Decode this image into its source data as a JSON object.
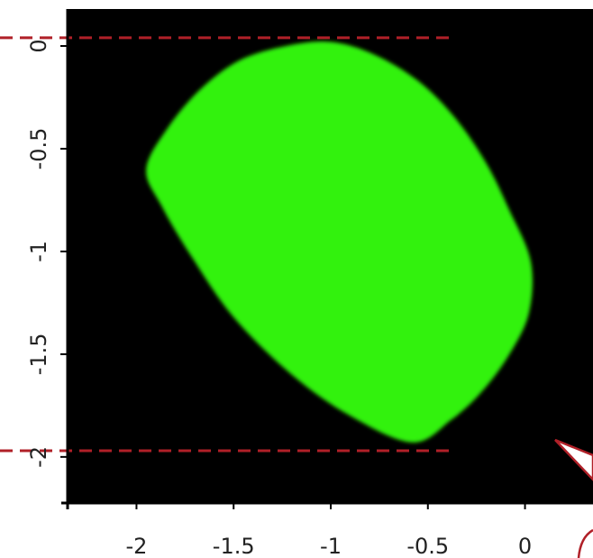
{
  "colors": {
    "background": "#000000",
    "fill": "#33f20a",
    "reference_line": "#b02028",
    "axis": "#000000",
    "callout_stroke": "#b02028",
    "callout_fill": "#ffffff"
  },
  "chart_data": {
    "type": "area",
    "title": "",
    "xlabel": "",
    "ylabel": "",
    "xlim": [
      -2.35,
      0.35
    ],
    "ylim": [
      -2.22,
      0.18
    ],
    "grid": false,
    "x_ticks": [
      -2,
      -1.5,
      -1,
      -0.5,
      0
    ],
    "y_ticks": [
      0,
      -0.5,
      -1,
      -1.5,
      -2
    ],
    "x_tick_labels": [
      "-2",
      "-1.5",
      "-1",
      "-0.5",
      "0"
    ],
    "y_tick_labels": [
      "0",
      "-0.5",
      "-1",
      "-1.5",
      "-2"
    ],
    "region_boundary": [
      [
        -1.95,
        -0.6
      ],
      [
        -1.84,
        -0.4
      ],
      [
        -1.67,
        -0.21
      ],
      [
        -1.47,
        -0.07
      ],
      [
        -1.23,
        0.0
      ],
      [
        -1.0,
        0.02
      ],
      [
        -0.78,
        -0.04
      ],
      [
        -0.55,
        -0.17
      ],
      [
        -0.36,
        -0.35
      ],
      [
        -0.2,
        -0.57
      ],
      [
        -0.08,
        -0.8
      ],
      [
        0.03,
        -1.05
      ],
      [
        0.02,
        -1.3
      ],
      [
        -0.08,
        -1.5
      ],
      [
        -0.22,
        -1.68
      ],
      [
        -0.38,
        -1.82
      ],
      [
        -0.58,
        -1.93
      ],
      [
        -0.9,
        -1.8
      ],
      [
        -1.2,
        -1.6
      ],
      [
        -1.5,
        -1.32
      ],
      [
        -1.72,
        -1.02
      ],
      [
        -1.87,
        -0.78
      ],
      [
        -1.95,
        -0.6
      ]
    ],
    "reference_lines": [
      {
        "orientation": "horizontal",
        "y": 0.04,
        "x_from": -2.35,
        "x_to": -0.37
      },
      {
        "orientation": "horizontal",
        "y": -1.97,
        "x_from": -2.35,
        "x_to": -0.37
      }
    ]
  }
}
